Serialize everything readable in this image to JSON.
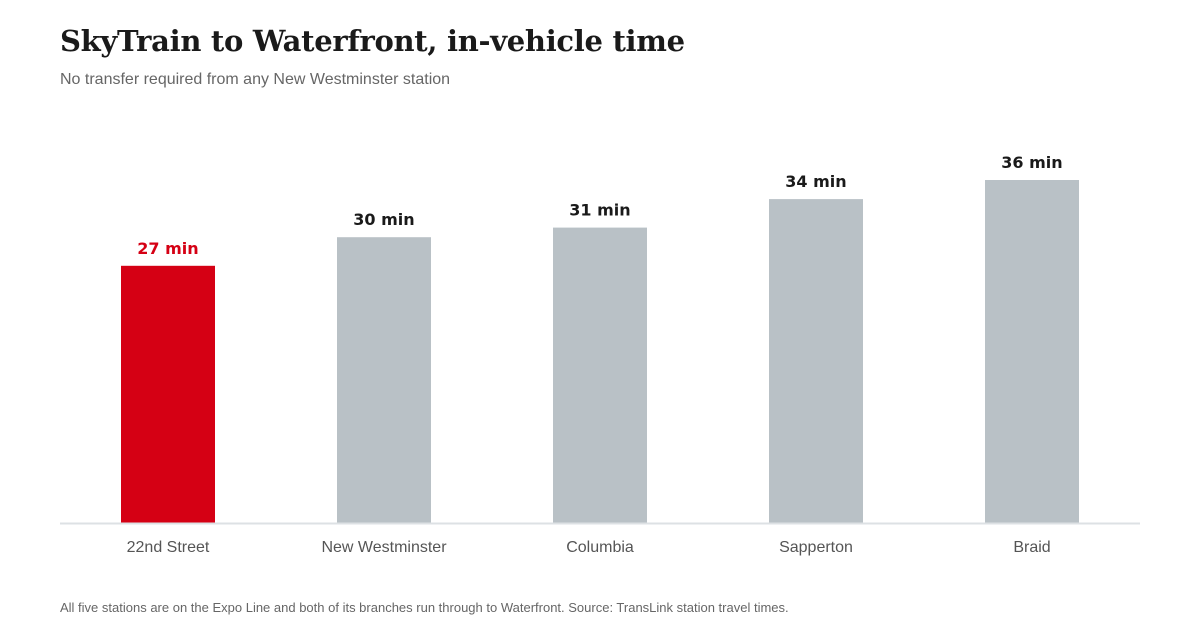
{
  "chart_data": {
    "type": "bar",
    "title": "SkyTrain to Waterfront, in-vehicle time",
    "subtitle": "No transfer required from any New Westminster station",
    "categories": [
      "22nd Street",
      "New Westminster",
      "Columbia",
      "Sapperton",
      "Braid"
    ],
    "values": [
      27,
      30,
      31,
      34,
      36
    ],
    "data_labels": [
      "27 min",
      "30 min",
      "31 min",
      "34 min",
      "36 min"
    ],
    "unit": "min",
    "ylim": [
      0,
      36
    ],
    "grid": false,
    "highlight_category": "22nd Street",
    "colors": {
      "highlight": "#d50014",
      "default": "#b9c1c6",
      "axis": "#dde1e4",
      "default_label": "#1a1a1a"
    },
    "footnote": "All five stations are on the Expo Line and both of its branches run through to Waterfront. Source: TransLink station travel times."
  }
}
